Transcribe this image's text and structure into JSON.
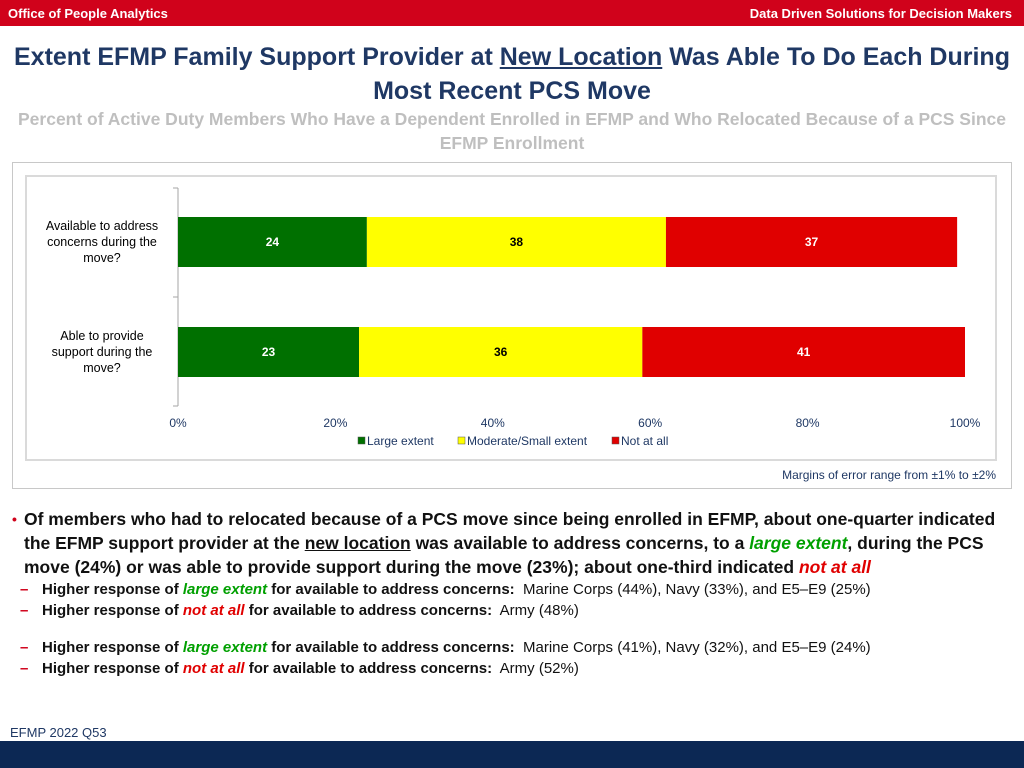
{
  "header": {
    "left": "Office of People Analytics",
    "right": "Data Driven Solutions for Decision Makers"
  },
  "title": {
    "part1": "Extent EFMP Family Support Provider at",
    "underlined": "New Location",
    "part2": "Was Able To Do Each During Most Recent PCS Move"
  },
  "subtitle": "Percent of Active Duty Members Who Have a Dependent Enrolled in EFMP and Who Relocated Because of a PCS Since EFMP Enrollment",
  "chart_data": {
    "type": "bar",
    "orientation": "horizontal",
    "stacked": true,
    "categories": [
      [
        "Available to address",
        "concerns during the",
        "move?"
      ],
      [
        "Able to provide",
        "support during the",
        "move?"
      ]
    ],
    "series": [
      {
        "name": "Large extent",
        "color": "#007000",
        "values": [
          24,
          23
        ],
        "labels": [
          "24",
          "23"
        ]
      },
      {
        "name": "Moderate/Small extent",
        "color": "#ffff00",
        "values": [
          38,
          36
        ],
        "labels": [
          "38",
          "36"
        ]
      },
      {
        "name": "Not at all",
        "color": "#e00000",
        "values": [
          37,
          41
        ],
        "labels": [
          "37",
          "41"
        ]
      }
    ],
    "xlim": [
      0,
      100
    ],
    "xticks": [
      "0%",
      "20%",
      "40%",
      "60%",
      "80%",
      "100%"
    ],
    "legend_position": "bottom"
  },
  "margin_note": "Margins of error range from ±1% to ±2%",
  "bullet": {
    "t1": "Of members who had to relocated because of a PCS move since being enrolled in EFMP, about one-quarter indicated the EFMP support provider at the",
    "t_underline": "new location",
    "t2": "was available to address concerns, to a",
    "t_large": "large extent",
    "t3": ", during the PCS move (24%) or was able to provide support during the move (23%); about one-third indicated",
    "t_notatall": "not at all"
  },
  "subs": [
    {
      "pre": "Higher response of",
      "key": "large extent",
      "keycolor": "green",
      "post": "for available to address concerns:",
      "detail": "Marine Corps (44%), Navy (33%), and E5–E9 (25%)"
    },
    {
      "pre": "Higher response of",
      "key": "not at all",
      "keycolor": "red",
      "post": "for available to address concerns:",
      "detail": "Army (48%)"
    },
    {
      "pre": "Higher response of",
      "key": "large extent",
      "keycolor": "green",
      "post": "for available to address concerns:",
      "detail": "Marine Corps (41%), Navy (32%), and E5–E9 (24%)"
    },
    {
      "pre": "Higher response of",
      "key": "not at all",
      "keycolor": "red",
      "post": "for available to address concerns:",
      "detail": "Army (52%)"
    }
  ],
  "footer_label": "EFMP 2022 Q53"
}
